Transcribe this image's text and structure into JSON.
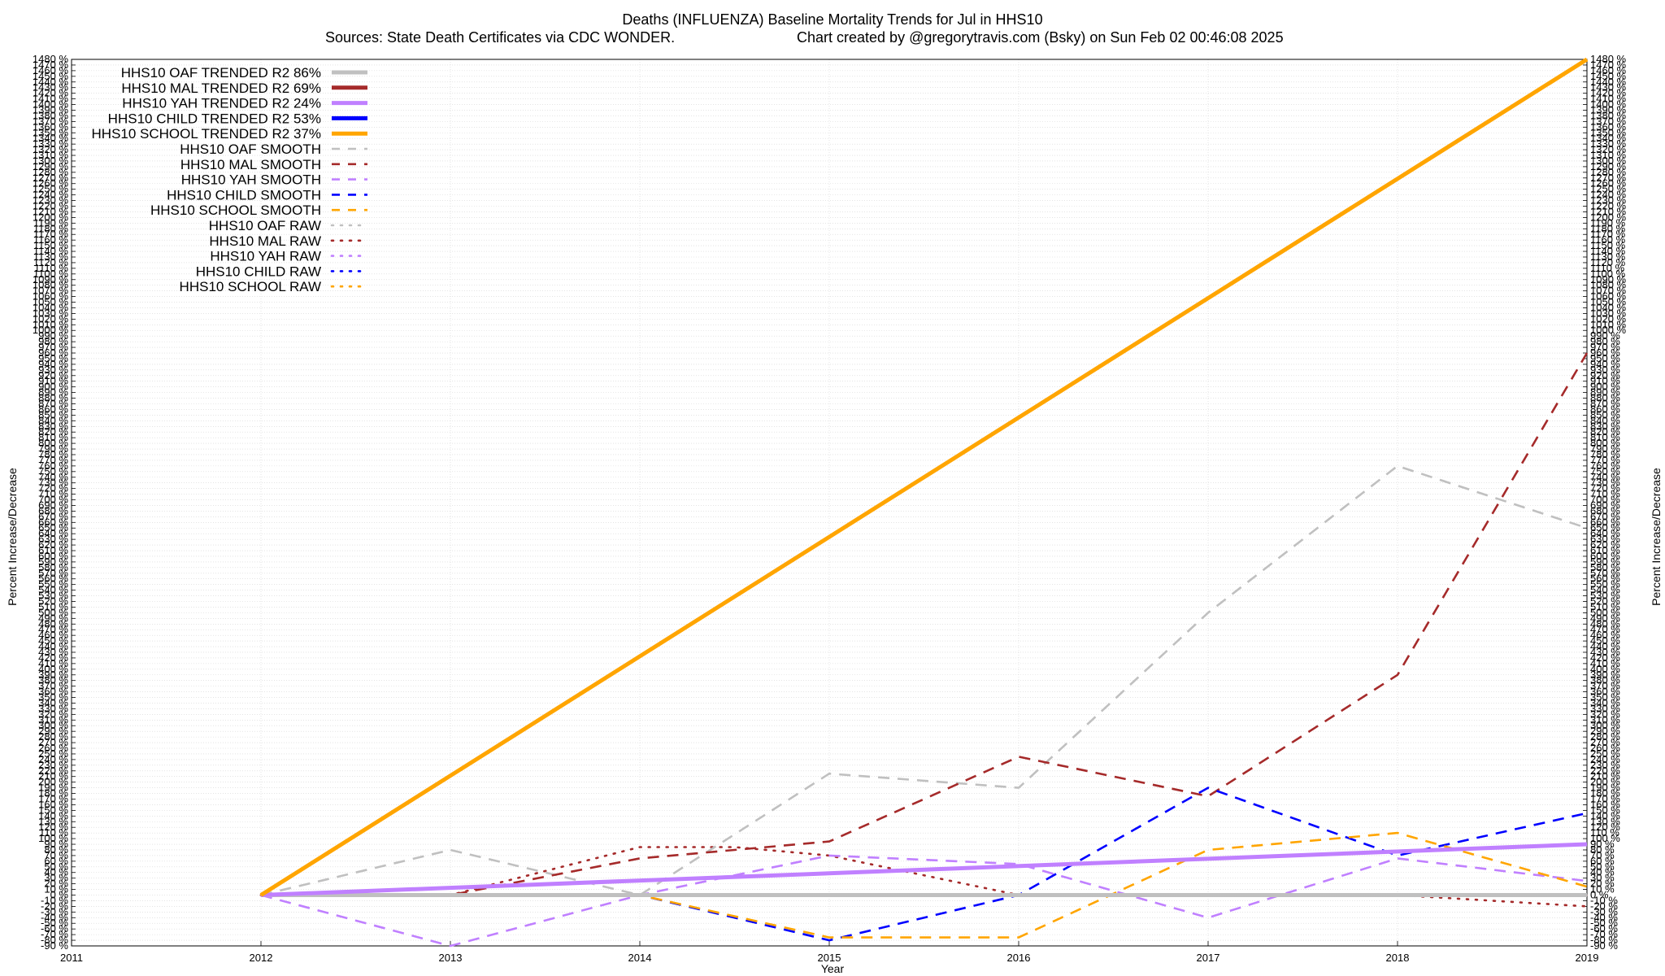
{
  "chart_data": {
    "type": "line",
    "title": "Deaths (INFLUENZA)  Baseline Mortality Trends for Jul in HHS10",
    "subtitle_left": "Sources: State Death Certificates via CDC WONDER.",
    "subtitle_right": "Chart created by @gregorytravis.com (Bsky) on Sun Feb 02 00:46:08 2025",
    "xlabel": "Year",
    "ylabel": "Percent Increase/Decrease",
    "xlim": [
      2011,
      2019
    ],
    "ylim": [
      -90,
      1480
    ],
    "x_ticks": [
      2011,
      2012,
      2013,
      2014,
      2015,
      2016,
      2017,
      2018,
      2019
    ],
    "y_tick_step": 10,
    "y_tick_suffix": " %",
    "grid": true,
    "legend_position": "top-left",
    "series": [
      {
        "name": "HHS10 OAF TRENDED R2  86%",
        "style": "trended",
        "color": "#c0c0c0",
        "x": [
          2012,
          2019
        ],
        "y": [
          0,
          0
        ]
      },
      {
        "name": "HHS10 MAL TRENDED R2  69%",
        "style": "trended",
        "color": "#a52a2a",
        "x": [],
        "y": []
      },
      {
        "name": "HHS10 YAH TRENDED R2  24%",
        "style": "trended",
        "color": "#c080ff",
        "x": [
          2012,
          2019
        ],
        "y": [
          0,
          90
        ]
      },
      {
        "name": "HHS10 CHILD TRENDED R2  53%",
        "style": "trended",
        "color": "#0000ff",
        "x": [],
        "y": []
      },
      {
        "name": "HHS10 SCHOOL TRENDED R2  37%",
        "style": "trended",
        "color": "#ffa500",
        "x": [
          2012,
          2019
        ],
        "y": [
          0,
          1480
        ]
      },
      {
        "name": "HHS10 OAF SMOOTH",
        "style": "smooth",
        "color": "#c0c0c0",
        "x": [
          2012,
          2013,
          2014,
          2015,
          2016,
          2017,
          2018,
          2019
        ],
        "y": [
          0,
          80,
          0,
          215,
          190,
          500,
          760,
          650
        ]
      },
      {
        "name": "HHS10 MAL SMOOTH",
        "style": "smooth",
        "color": "#a52a2a",
        "x": [
          2012,
          2013,
          2014,
          2015,
          2016,
          2017,
          2018,
          2019
        ],
        "y": [
          0,
          0,
          65,
          95,
          245,
          175,
          390,
          960
        ]
      },
      {
        "name": "HHS10 YAH SMOOTH",
        "style": "smooth",
        "color": "#c080ff",
        "x": [
          2012,
          2013,
          2014,
          2015,
          2016,
          2017,
          2018,
          2019
        ],
        "y": [
          0,
          -90,
          0,
          70,
          55,
          -40,
          65,
          25
        ]
      },
      {
        "name": "HHS10 CHILD SMOOTH",
        "style": "smooth",
        "color": "#0000ff",
        "x": [
          2012,
          2013,
          2014,
          2015,
          2016,
          2017,
          2018,
          2019
        ],
        "y": [
          0,
          0,
          0,
          -80,
          0,
          190,
          70,
          145
        ]
      },
      {
        "name": "HHS10 SCHOOL SMOOTH",
        "style": "smooth",
        "color": "#ffa500",
        "x": [
          2012,
          2013,
          2014,
          2015,
          2016,
          2017,
          2018,
          2019
        ],
        "y": [
          0,
          0,
          0,
          -75,
          -75,
          80,
          110,
          15
        ]
      },
      {
        "name": "HHS10 OAF RAW",
        "style": "raw",
        "color": "#c0c0c0",
        "x": [
          2012,
          2019
        ],
        "y": [
          0,
          0
        ]
      },
      {
        "name": "HHS10 MAL RAW",
        "style": "raw",
        "color": "#a52a2a",
        "x": [
          2012,
          2013,
          2014,
          2014.5,
          2015,
          2016,
          2017,
          2018,
          2019
        ],
        "y": [
          0,
          0,
          85,
          85,
          70,
          0,
          0,
          0,
          -20
        ]
      },
      {
        "name": "HHS10 YAH RAW",
        "style": "raw",
        "color": "#c080ff",
        "x": [
          2012,
          2019
        ],
        "y": [
          0,
          0
        ]
      },
      {
        "name": "HHS10 CHILD RAW",
        "style": "raw",
        "color": "#0000ff",
        "x": [
          2012,
          2019
        ],
        "y": [
          0,
          0
        ]
      },
      {
        "name": "HHS10 SCHOOL RAW",
        "style": "raw",
        "color": "#ffa500",
        "x": [
          2012,
          2019
        ],
        "y": [
          0,
          0
        ]
      }
    ]
  }
}
